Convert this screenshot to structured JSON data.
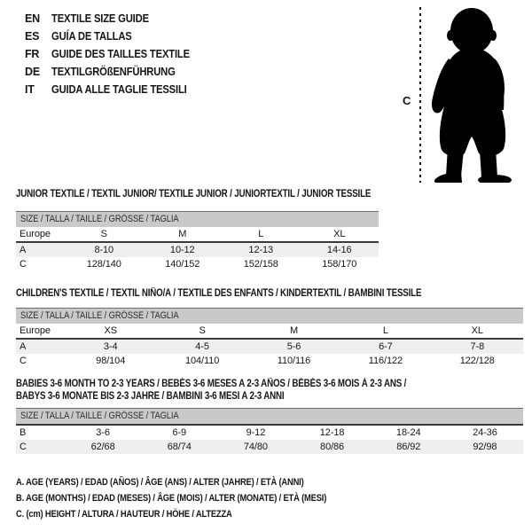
{
  "colors": {
    "ink": "#161616",
    "header_band_bg": "#c9c9c9",
    "shaded_row_bg": "#efefef",
    "heavy_rule": "#3a3a3a",
    "thin_rule": "#6e6e6e",
    "silhouette": "#000000"
  },
  "languages": {
    "items": [
      {
        "code": "EN",
        "label": "TEXTILE SIZE GUIDE"
      },
      {
        "code": "ES",
        "label": "GUÍA DE TALLAS"
      },
      {
        "code": "FR",
        "label": "GUIDE DES TAILLES TEXTILE"
      },
      {
        "code": "DE",
        "label": "TEXTILGRÖßENFÜHRUNG"
      },
      {
        "code": "IT",
        "label": "GUIDA ALLE TAGLIE TESSILI"
      }
    ]
  },
  "figure": {
    "label": "C",
    "description": "toddler-silhouette"
  },
  "tables": [
    {
      "id": "junior",
      "title": "JUNIOR TEXTILE / TEXTIL JUNIOR/ TEXTILE JUNIOR / JUNIORTEXTIL / JUNIOR TESSILE",
      "size_header": "SIZE / TALLA / TAILLE / GRÖSSE / TAGLIA",
      "columns": [
        "Europe",
        "S",
        "M",
        "L",
        "XL"
      ],
      "rows": [
        {
          "label": "A",
          "values": [
            "8-10",
            "10-12",
            "12-13",
            "14-16"
          ],
          "shaded": true
        },
        {
          "label": "C",
          "values": [
            "128/140",
            "140/152",
            "152/158",
            "158/170"
          ],
          "shaded": false
        }
      ]
    },
    {
      "id": "children",
      "title": "CHILDREN'S TEXTILE / TEXTIL NIÑO/A / TEXTILE DES ENFANTS / KINDERTEXTIL / BAMBINI TESSILE",
      "size_header": "SIZE / TALLA / TAILLE / GRÖSSE / TAGLIA",
      "columns": [
        "Europe",
        "XS",
        "S",
        "M",
        "L",
        "XL"
      ],
      "rows": [
        {
          "label": "A",
          "values": [
            "3-4",
            "4-5",
            "5-6",
            "6-7",
            "7-8"
          ],
          "shaded": true
        },
        {
          "label": "C",
          "values": [
            "98/104",
            "104/110",
            "110/116",
            "116/122",
            "122/128"
          ],
          "shaded": false
        }
      ]
    },
    {
      "id": "babies",
      "title": "BABIES 3-6 MONTH TO 2-3 YEARS / BEBÉS 3-6 MESES A 2-3 AÑOS / BÉBÉS 3-6 MOIS À 2-3 ANS /",
      "title2": "BABYS 3-6 MONATE BIS 2-3 JAHRE / BAMBINI 3-6 MESI A 2-3 ANNI",
      "size_header": "SIZE / TALLA / TAILLE / GRÖSSE / TAGLIA",
      "columns": null,
      "rows": [
        {
          "label": "B",
          "values": [
            "3-6",
            "6-9",
            "9-12",
            "12-18",
            "18-24",
            "24-36"
          ],
          "shaded": false
        },
        {
          "label": "C",
          "values": [
            "62/68",
            "68/74",
            "74/80",
            "80/86",
            "86/92",
            "92/98"
          ],
          "shaded": true
        }
      ]
    }
  ],
  "notes": [
    "A. AGE (YEARS) / EDAD (AÑOS) / ÂGE (ANS) / ALTER (JAHRE) / ETÀ (ANNI)",
    "B. AGE (MONTHS) / EDAD (MESES) / ÂGE (MOIS) / ALTER (MONATE) / ETÀ (MESI)",
    "C. (cm) HEIGHT / ALTURA / HAUTEUR / HÖHE / ALTEZZA"
  ]
}
